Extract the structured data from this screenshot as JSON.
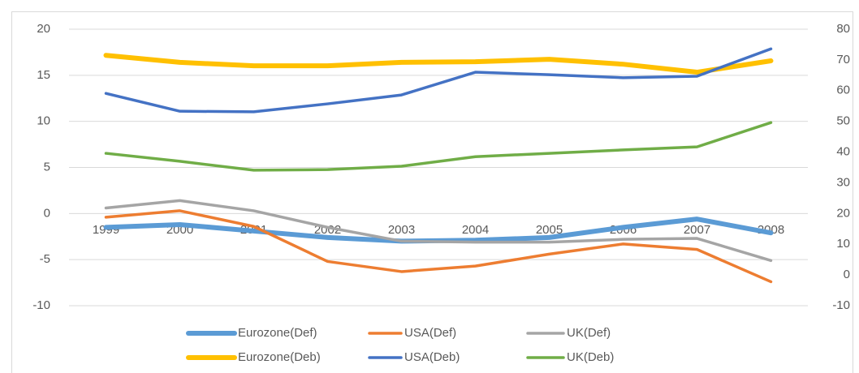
{
  "chart_data": {
    "type": "line",
    "categories": [
      "1999",
      "2000",
      "2001",
      "2002",
      "2003",
      "2004",
      "2005",
      "2006",
      "2007",
      "2008"
    ],
    "ylim": [
      -10,
      20
    ],
    "yticks": [
      -10,
      -5,
      0,
      5,
      10,
      15,
      20
    ],
    "y2lim": [
      -10,
      80
    ],
    "y2ticks": [
      -10,
      0,
      10,
      20,
      30,
      40,
      50,
      60,
      70,
      80
    ],
    "grid": true,
    "legend": "bottom",
    "series": [
      {
        "name": "Eurozone(Def)",
        "color": "#5b9bd5",
        "width": 6,
        "values": [
          -1.5,
          -1.2,
          -1.9,
          -2.6,
          -3.0,
          -2.9,
          -2.6,
          -1.5,
          -0.6,
          -2.1
        ]
      },
      {
        "name": "USA(Def)",
        "color": "#ed7d31",
        "width": 3.5,
        "values": [
          -0.4,
          0.3,
          -1.4,
          -5.2,
          -6.3,
          -5.7,
          -4.4,
          -3.3,
          -3.9,
          -7.4
        ]
      },
      {
        "name": "UK(Def)",
        "color": "#a5a5a5",
        "width": 3.5,
        "values": [
          0.6,
          1.4,
          0.3,
          -1.5,
          -3.0,
          -3.1,
          -3.1,
          -2.8,
          -2.7,
          -5.1
        ]
      },
      {
        "name": "Eurozone(Deb)",
        "color": "#ffc000",
        "width": 6,
        "axis": "y2",
        "values": [
          71.5,
          69.2,
          68.1,
          68.1,
          69.2,
          69.4,
          70.2,
          68.6,
          66.0,
          69.7
        ]
      },
      {
        "name": "USA(Deb)",
        "color": "#4472c4",
        "width": 3.5,
        "axis": "y2",
        "values": [
          59.1,
          53.3,
          53.1,
          55.7,
          58.6,
          66.0,
          65.2,
          64.2,
          64.7,
          73.6
        ]
      },
      {
        "name": "UK(Deb)",
        "color": "#70ad47",
        "width": 3.5,
        "axis": "y2",
        "values": [
          39.6,
          37.0,
          34.1,
          34.3,
          35.4,
          38.5,
          39.6,
          40.7,
          41.7,
          49.6
        ]
      }
    ]
  }
}
